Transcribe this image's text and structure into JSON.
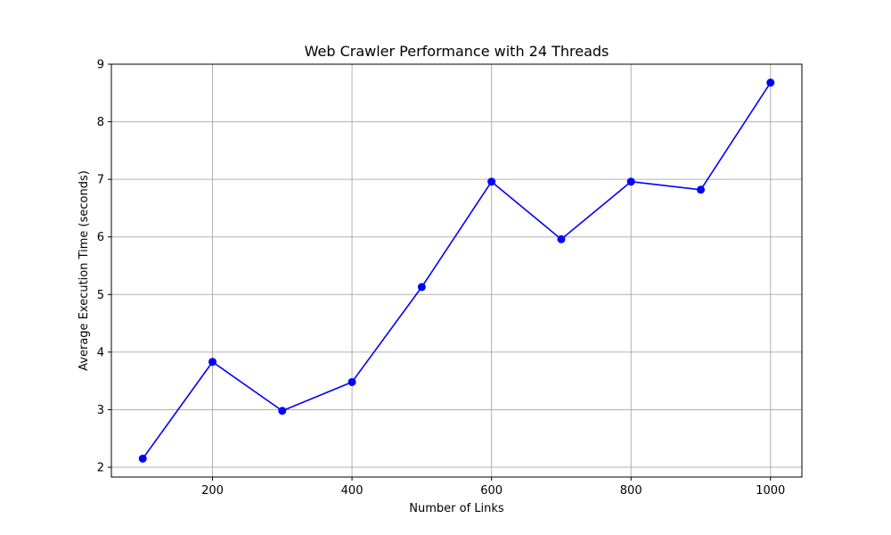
{
  "chart_data": {
    "type": "line",
    "title": "Web Crawler Performance with 24 Threads",
    "xlabel": "Number of Links",
    "ylabel": "Average Execution Time (seconds)",
    "x": [
      100,
      200,
      300,
      400,
      500,
      600,
      700,
      800,
      900,
      1000
    ],
    "series": [
      {
        "name": "",
        "values": [
          2.15,
          3.83,
          2.98,
          3.48,
          5.13,
          6.96,
          5.96,
          6.96,
          6.82,
          8.68
        ],
        "color": "#0000ff",
        "marker": "circle"
      }
    ],
    "xlim": [
      55,
      1045
    ],
    "ylim": [
      1.83,
      9.0
    ],
    "xticks": [
      200,
      400,
      600,
      800,
      1000
    ],
    "yticks": [
      2,
      3,
      4,
      5,
      6,
      7,
      8,
      9
    ],
    "grid": true,
    "legend": "none"
  }
}
